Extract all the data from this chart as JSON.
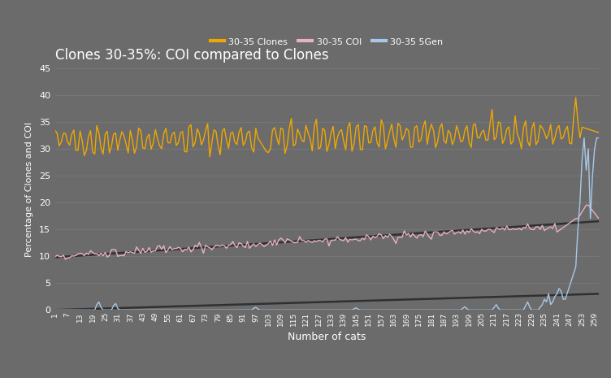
{
  "title": "Clones 30-35%: COI compared to Clones",
  "xlabel": "Number of cats",
  "ylabel": "Percentage of Clones and COI",
  "background_color": "#6b6b6b",
  "grid_color": "#7a7a7a",
  "text_color": "white",
  "ylim": [
    0,
    45
  ],
  "xlim": [
    1,
    261
  ],
  "legend_labels": [
    "30-35 5Gen",
    "30-35 COI",
    "30-35 Clones"
  ],
  "line_colors": [
    "#a8c8e8",
    "#e8b0c0",
    "#f0a800"
  ],
  "trend_color": "#303030",
  "n_cats": 261,
  "figwidth": 7.52,
  "figheight": 4.65,
  "dpi": 100
}
